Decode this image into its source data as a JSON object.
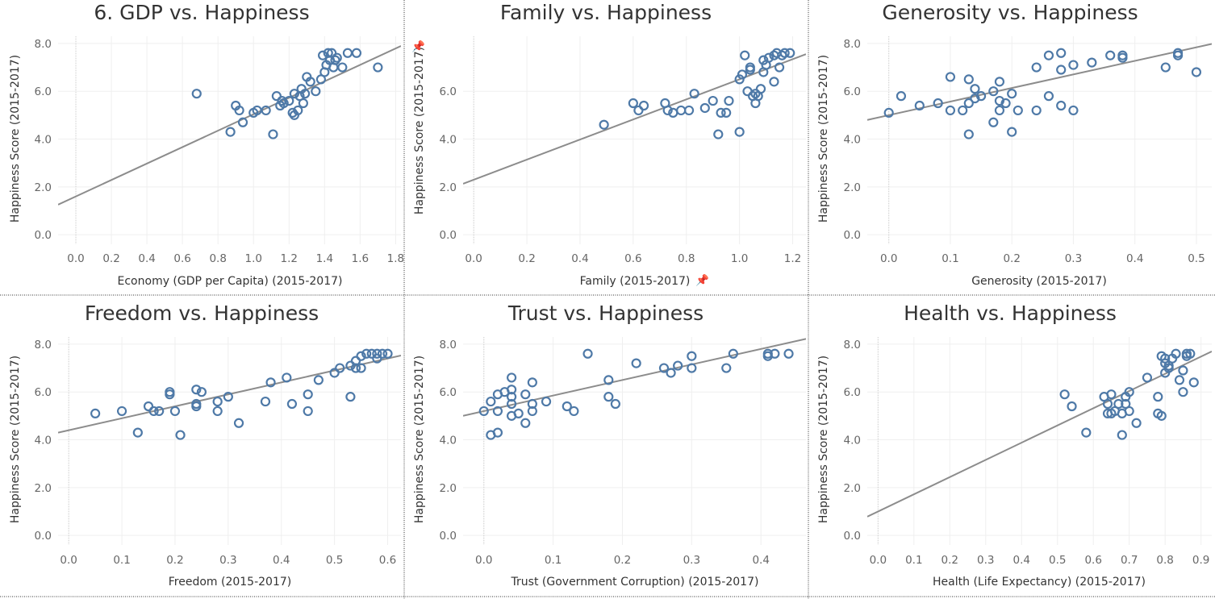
{
  "chart_data": [
    {
      "type": "scatter",
      "title": "6. GDP vs. Happiness",
      "xlabel": "Economy (GDP per Capita) (2015-2017)",
      "ylabel": "Happiness Score (2015-2017)",
      "xlim": [
        -0.1,
        1.83
      ],
      "ylim": [
        -0.4,
        8.3
      ],
      "xticks": [
        "0.0",
        "0.2",
        "0.4",
        "0.6",
        "0.8",
        "1.0",
        "1.2",
        "1.4",
        "1.6",
        "1.8"
      ],
      "yticks": [
        "0.0",
        "2.0",
        "4.0",
        "6.0",
        "8.0"
      ],
      "trendline": {
        "slope": 3.44,
        "intercept": 1.6
      },
      "points": [
        [
          0.68,
          5.9
        ],
        [
          0.87,
          4.3
        ],
        [
          0.9,
          5.4
        ],
        [
          0.92,
          5.2
        ],
        [
          0.94,
          4.7
        ],
        [
          1.0,
          5.1
        ],
        [
          1.02,
          5.2
        ],
        [
          1.07,
          5.2
        ],
        [
          1.11,
          4.2
        ],
        [
          1.13,
          5.8
        ],
        [
          1.15,
          5.4
        ],
        [
          1.16,
          5.6
        ],
        [
          1.17,
          5.5
        ],
        [
          1.2,
          5.6
        ],
        [
          1.22,
          5.1
        ],
        [
          1.23,
          5.0
        ],
        [
          1.23,
          5.9
        ],
        [
          1.25,
          5.2
        ],
        [
          1.26,
          5.8
        ],
        [
          1.27,
          6.1
        ],
        [
          1.28,
          5.5
        ],
        [
          1.29,
          5.9
        ],
        [
          1.3,
          6.6
        ],
        [
          1.32,
          6.4
        ],
        [
          1.35,
          6.0
        ],
        [
          1.38,
          6.5
        ],
        [
          1.39,
          7.5
        ],
        [
          1.4,
          6.8
        ],
        [
          1.41,
          7.1
        ],
        [
          1.42,
          7.6
        ],
        [
          1.43,
          7.3
        ],
        [
          1.44,
          7.6
        ],
        [
          1.45,
          7.0
        ],
        [
          1.46,
          7.3
        ],
        [
          1.47,
          7.4
        ],
        [
          1.5,
          7.0
        ],
        [
          1.53,
          7.6
        ],
        [
          1.58,
          7.6
        ],
        [
          1.7,
          7.0
        ]
      ]
    },
    {
      "type": "scatter",
      "title": "Family vs. Happiness",
      "xlabel": "Family (2015-2017)",
      "ylabel": "Happiness Score (2015-2017)",
      "xlim": [
        -0.04,
        1.25
      ],
      "ylim": [
        -0.4,
        8.3
      ],
      "xticks": [
        "0.0",
        "0.2",
        "0.4",
        "0.6",
        "0.8",
        "1.0",
        "1.2"
      ],
      "yticks": [
        "0.0",
        "2.0",
        "4.0",
        "6.0"
      ],
      "trendline": {
        "slope": 4.2,
        "intercept": 2.3
      },
      "points": [
        [
          0.49,
          4.6
        ],
        [
          0.6,
          5.5
        ],
        [
          0.62,
          5.2
        ],
        [
          0.64,
          5.4
        ],
        [
          0.72,
          5.5
        ],
        [
          0.73,
          5.2
        ],
        [
          0.75,
          5.1
        ],
        [
          0.78,
          5.2
        ],
        [
          0.81,
          5.2
        ],
        [
          0.83,
          5.9
        ],
        [
          0.87,
          5.3
        ],
        [
          0.9,
          5.6
        ],
        [
          0.92,
          4.2
        ],
        [
          0.93,
          5.1
        ],
        [
          0.95,
          5.1
        ],
        [
          0.96,
          5.6
        ],
        [
          1.0,
          4.3
        ],
        [
          1.0,
          6.5
        ],
        [
          1.01,
          6.7
        ],
        [
          1.02,
          7.5
        ],
        [
          1.03,
          6.0
        ],
        [
          1.04,
          6.9
        ],
        [
          1.04,
          7.0
        ],
        [
          1.05,
          5.8
        ],
        [
          1.06,
          5.5
        ],
        [
          1.06,
          5.9
        ],
        [
          1.07,
          5.8
        ],
        [
          1.08,
          6.1
        ],
        [
          1.09,
          6.8
        ],
        [
          1.09,
          7.3
        ],
        [
          1.1,
          7.1
        ],
        [
          1.11,
          7.4
        ],
        [
          1.13,
          6.4
        ],
        [
          1.13,
          7.5
        ],
        [
          1.14,
          7.6
        ],
        [
          1.15,
          7.0
        ],
        [
          1.16,
          7.5
        ],
        [
          1.17,
          7.6
        ],
        [
          1.19,
          7.6
        ]
      ]
    },
    {
      "type": "scatter",
      "title": "Generosity vs. Happiness",
      "xlabel": "Generosity (2015-2017)",
      "ylabel": "Happiness Score (2015-2017)",
      "xlim": [
        -0.035,
        0.525
      ],
      "ylim": [
        -0.4,
        8.3
      ],
      "xticks": [
        "0.0",
        "0.1",
        "0.2",
        "0.3",
        "0.4",
        "0.5"
      ],
      "yticks": [
        "0.0",
        "2.0",
        "4.0",
        "6.0",
        "8.0"
      ],
      "trendline": {
        "slope": 5.68,
        "intercept": 5.0
      },
      "points": [
        [
          0.0,
          5.1
        ],
        [
          0.02,
          5.8
        ],
        [
          0.05,
          5.4
        ],
        [
          0.08,
          5.5
        ],
        [
          0.1,
          6.6
        ],
        [
          0.1,
          5.2
        ],
        [
          0.12,
          5.2
        ],
        [
          0.13,
          6.5
        ],
        [
          0.13,
          4.2
        ],
        [
          0.13,
          5.5
        ],
        [
          0.14,
          5.7
        ],
        [
          0.14,
          6.1
        ],
        [
          0.15,
          5.8
        ],
        [
          0.17,
          4.7
        ],
        [
          0.17,
          6.0
        ],
        [
          0.18,
          5.2
        ],
        [
          0.18,
          5.6
        ],
        [
          0.18,
          6.4
        ],
        [
          0.19,
          5.5
        ],
        [
          0.2,
          5.9
        ],
        [
          0.2,
          4.3
        ],
        [
          0.21,
          5.2
        ],
        [
          0.24,
          5.2
        ],
        [
          0.24,
          7.0
        ],
        [
          0.26,
          7.5
        ],
        [
          0.26,
          5.8
        ],
        [
          0.28,
          6.9
        ],
        [
          0.28,
          7.6
        ],
        [
          0.28,
          5.4
        ],
        [
          0.3,
          5.2
        ],
        [
          0.3,
          7.1
        ],
        [
          0.33,
          7.2
        ],
        [
          0.36,
          7.5
        ],
        [
          0.38,
          7.5
        ],
        [
          0.38,
          7.4
        ],
        [
          0.45,
          7.0
        ],
        [
          0.47,
          7.5
        ],
        [
          0.47,
          7.6
        ],
        [
          0.5,
          6.8
        ]
      ]
    },
    {
      "type": "scatter",
      "title": "Freedom vs. Happiness",
      "xlabel": "Freedom (2015-2017)",
      "ylabel": "Happiness Score (2015-2017)",
      "xlim": [
        -0.02,
        0.625
      ],
      "ylim": [
        -0.4,
        8.3
      ],
      "xticks": [
        "0.0",
        "0.1",
        "0.2",
        "0.3",
        "0.4",
        "0.5",
        "0.6"
      ],
      "yticks": [
        "0.0",
        "2.0",
        "4.0",
        "6.0",
        "8.0"
      ],
      "trendline": {
        "slope": 5.0,
        "intercept": 4.4
      },
      "points": [
        [
          0.05,
          5.1
        ],
        [
          0.1,
          5.2
        ],
        [
          0.13,
          4.3
        ],
        [
          0.15,
          5.4
        ],
        [
          0.16,
          5.2
        ],
        [
          0.17,
          5.2
        ],
        [
          0.19,
          6.0
        ],
        [
          0.19,
          5.9
        ],
        [
          0.2,
          5.2
        ],
        [
          0.21,
          4.2
        ],
        [
          0.24,
          6.1
        ],
        [
          0.24,
          5.4
        ],
        [
          0.24,
          5.5
        ],
        [
          0.25,
          6.0
        ],
        [
          0.28,
          5.2
        ],
        [
          0.28,
          5.6
        ],
        [
          0.3,
          5.8
        ],
        [
          0.32,
          4.7
        ],
        [
          0.37,
          5.6
        ],
        [
          0.38,
          6.4
        ],
        [
          0.41,
          6.6
        ],
        [
          0.42,
          5.5
        ],
        [
          0.45,
          5.2
        ],
        [
          0.45,
          5.9
        ],
        [
          0.47,
          6.5
        ],
        [
          0.5,
          6.8
        ],
        [
          0.51,
          7.0
        ],
        [
          0.53,
          7.1
        ],
        [
          0.53,
          5.8
        ],
        [
          0.54,
          7.0
        ],
        [
          0.54,
          7.3
        ],
        [
          0.55,
          7.5
        ],
        [
          0.55,
          7.0
        ],
        [
          0.56,
          7.6
        ],
        [
          0.57,
          7.6
        ],
        [
          0.58,
          7.6
        ],
        [
          0.58,
          7.4
        ],
        [
          0.59,
          7.6
        ],
        [
          0.6,
          7.6
        ]
      ]
    },
    {
      "type": "scatter",
      "title": "Trust vs. Happiness",
      "xlabel": "Trust (Government Corruption) (2015-2017)",
      "ylabel": "Happiness Score (2015-2017)",
      "xlim": [
        -0.03,
        0.465
      ],
      "ylim": [
        -0.4,
        8.3
      ],
      "xticks": [
        "0.0",
        "0.1",
        "0.2",
        "0.3",
        "0.4"
      ],
      "yticks": [
        "0.0",
        "2.0",
        "4.0",
        "6.0",
        "8.0"
      ],
      "trendline": {
        "slope": 6.5,
        "intercept": 5.2
      },
      "points": [
        [
          0.0,
          5.2
        ],
        [
          0.01,
          4.2
        ],
        [
          0.01,
          5.6
        ],
        [
          0.02,
          4.3
        ],
        [
          0.02,
          5.2
        ],
        [
          0.02,
          5.9
        ],
        [
          0.03,
          6.0
        ],
        [
          0.04,
          6.1
        ],
        [
          0.04,
          5.8
        ],
        [
          0.04,
          5.5
        ],
        [
          0.04,
          6.6
        ],
        [
          0.04,
          5.0
        ],
        [
          0.05,
          5.1
        ],
        [
          0.06,
          4.7
        ],
        [
          0.06,
          5.9
        ],
        [
          0.07,
          6.4
        ],
        [
          0.07,
          5.5
        ],
        [
          0.07,
          5.2
        ],
        [
          0.09,
          5.6
        ],
        [
          0.12,
          5.4
        ],
        [
          0.13,
          5.2
        ],
        [
          0.15,
          7.6
        ],
        [
          0.18,
          5.8
        ],
        [
          0.18,
          6.5
        ],
        [
          0.19,
          5.5
        ],
        [
          0.22,
          7.2
        ],
        [
          0.26,
          7.0
        ],
        [
          0.27,
          6.8
        ],
        [
          0.28,
          7.1
        ],
        [
          0.3,
          7.0
        ],
        [
          0.3,
          7.5
        ],
        [
          0.35,
          7.0
        ],
        [
          0.36,
          7.6
        ],
        [
          0.41,
          7.5
        ],
        [
          0.41,
          7.6
        ],
        [
          0.42,
          7.6
        ],
        [
          0.44,
          7.6
        ]
      ]
    },
    {
      "type": "scatter",
      "title": "Health vs. Happiness",
      "xlabel": "Health (Life Expectancy) (2015-2017)",
      "ylabel": "Happiness Score (2015-2017)",
      "xlim": [
        -0.03,
        0.93
      ],
      "ylim": [
        -0.4,
        8.3
      ],
      "xticks": [
        "0.0",
        "0.1",
        "0.2",
        "0.3",
        "0.4",
        "0.5",
        "0.6",
        "0.7",
        "0.8",
        "0.9"
      ],
      "yticks": [
        "0.0",
        "2.0",
        "4.0",
        "6.0",
        "8.0"
      ],
      "trendline": {
        "slope": 7.2,
        "intercept": 1.0
      },
      "points": [
        [
          0.52,
          5.9
        ],
        [
          0.54,
          5.4
        ],
        [
          0.58,
          4.3
        ],
        [
          0.63,
          5.8
        ],
        [
          0.64,
          5.5
        ],
        [
          0.64,
          5.1
        ],
        [
          0.65,
          5.9
        ],
        [
          0.65,
          5.1
        ],
        [
          0.66,
          5.2
        ],
        [
          0.67,
          5.5
        ],
        [
          0.68,
          5.1
        ],
        [
          0.68,
          4.2
        ],
        [
          0.69,
          5.8
        ],
        [
          0.69,
          5.5
        ],
        [
          0.7,
          6.0
        ],
        [
          0.7,
          5.2
        ],
        [
          0.72,
          4.7
        ],
        [
          0.75,
          6.6
        ],
        [
          0.78,
          5.8
        ],
        [
          0.78,
          5.1
        ],
        [
          0.79,
          5.0
        ],
        [
          0.79,
          7.5
        ],
        [
          0.8,
          7.2
        ],
        [
          0.8,
          6.8
        ],
        [
          0.8,
          7.4
        ],
        [
          0.81,
          7.1
        ],
        [
          0.81,
          7.0
        ],
        [
          0.82,
          7.4
        ],
        [
          0.83,
          7.6
        ],
        [
          0.84,
          6.5
        ],
        [
          0.85,
          6.9
        ],
        [
          0.85,
          6.0
        ],
        [
          0.86,
          7.6
        ],
        [
          0.86,
          7.5
        ],
        [
          0.87,
          7.6
        ],
        [
          0.88,
          6.4
        ]
      ]
    }
  ]
}
